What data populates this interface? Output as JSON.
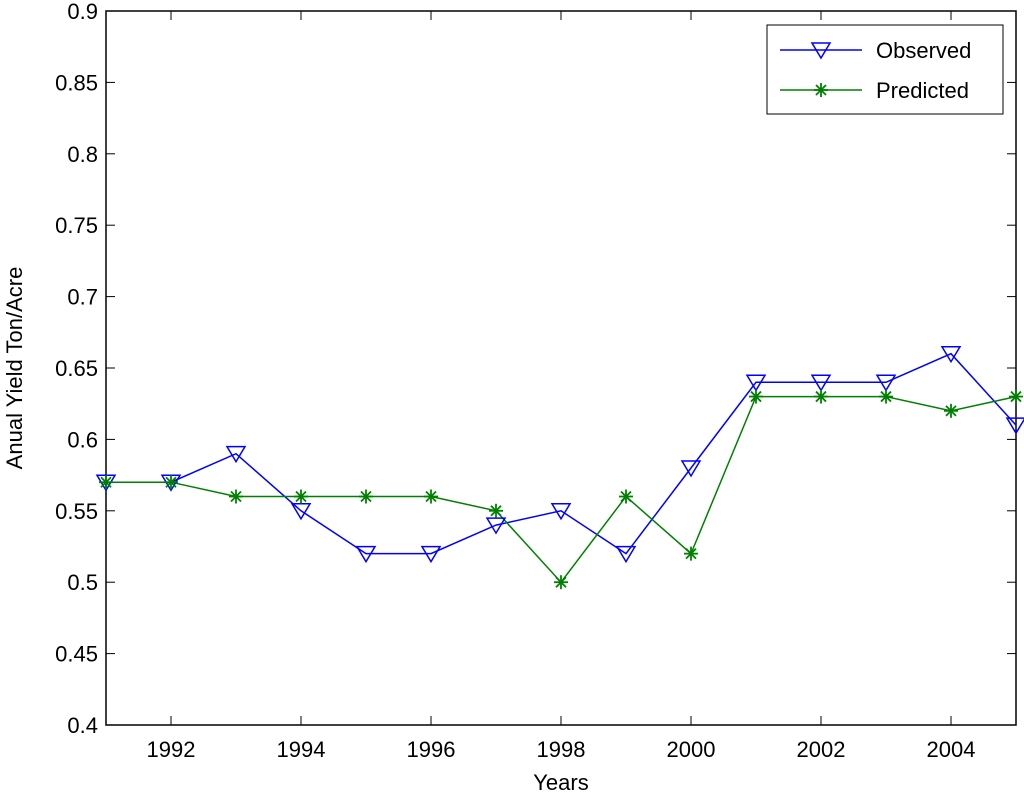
{
  "chart_data": {
    "type": "line",
    "title": "",
    "xlabel": "Years",
    "ylabel": "Anual Yield Ton/Acre",
    "xlim": [
      1991,
      2005
    ],
    "ylim": [
      0.4,
      0.9
    ],
    "xticks": [
      "1992",
      "1994",
      "1996",
      "1998",
      "2000",
      "2002",
      "2004"
    ],
    "yticks": [
      "0.4",
      "0.45",
      "0.5",
      "0.55",
      "0.6",
      "0.65",
      "0.7",
      "0.75",
      "0.8",
      "0.85",
      "0.9"
    ],
    "grid": false,
    "legend_position": "top-right",
    "x": [
      1991,
      1992,
      1993,
      1994,
      1995,
      1996,
      1997,
      1998,
      1999,
      2000,
      2001,
      2002,
      2003,
      2004,
      2005
    ],
    "series": [
      {
        "name": "Observed",
        "color": "#0000ff",
        "marker": "triangle-down",
        "values": [
          0.57,
          0.57,
          0.59,
          0.55,
          0.52,
          0.52,
          0.54,
          0.55,
          0.52,
          0.58,
          0.64,
          0.64,
          0.64,
          0.66,
          0.61
        ]
      },
      {
        "name": "Predicted",
        "color": "#008000",
        "marker": "star",
        "values": [
          0.57,
          0.57,
          0.56,
          0.56,
          0.56,
          0.56,
          0.55,
          0.5,
          0.56,
          0.52,
          0.63,
          0.63,
          0.63,
          0.62,
          0.63
        ]
      }
    ]
  }
}
